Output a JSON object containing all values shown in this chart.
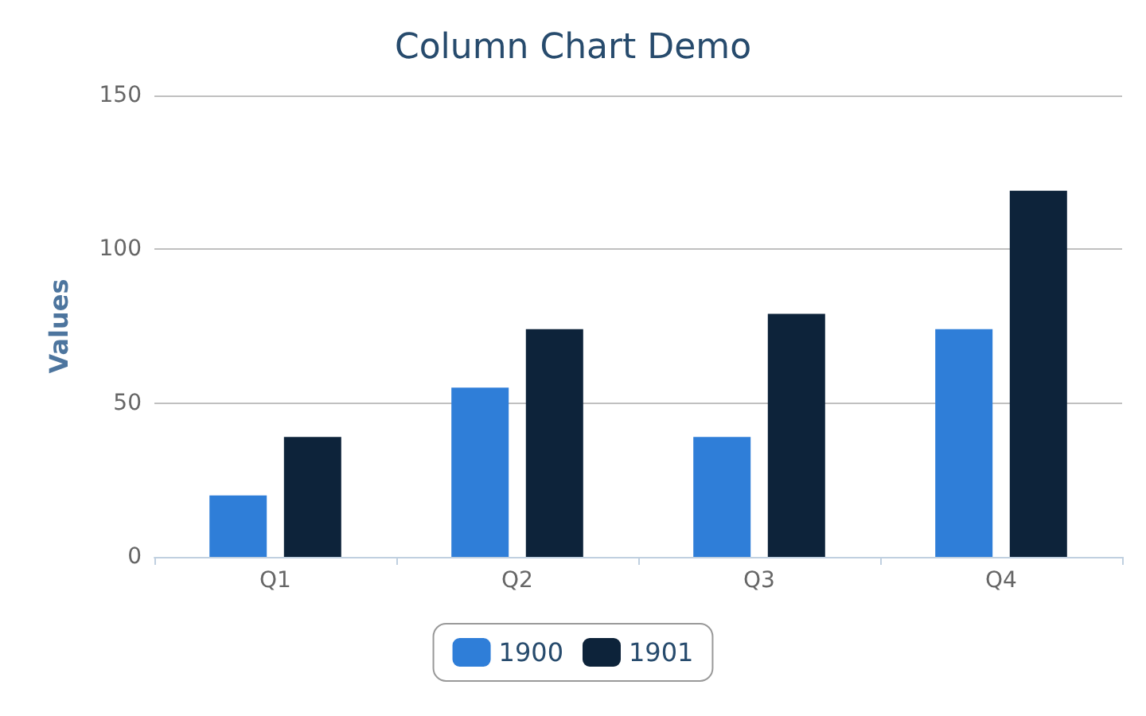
{
  "chart_data": {
    "type": "bar",
    "title": "Column Chart Demo",
    "ylabel": "Values",
    "categories": [
      "Q1",
      "Q2",
      "Q3",
      "Q4"
    ],
    "series": [
      {
        "name": "1900",
        "color": "#2f7ed8",
        "values": [
          20,
          55,
          39,
          74
        ]
      },
      {
        "name": "1901",
        "color": "#0d233a",
        "values": [
          39,
          74,
          79,
          119
        ]
      }
    ],
    "ylim": [
      0,
      150
    ],
    "yticks": [
      0,
      50,
      100,
      150
    ],
    "grid": "y",
    "legend": "bottom"
  }
}
